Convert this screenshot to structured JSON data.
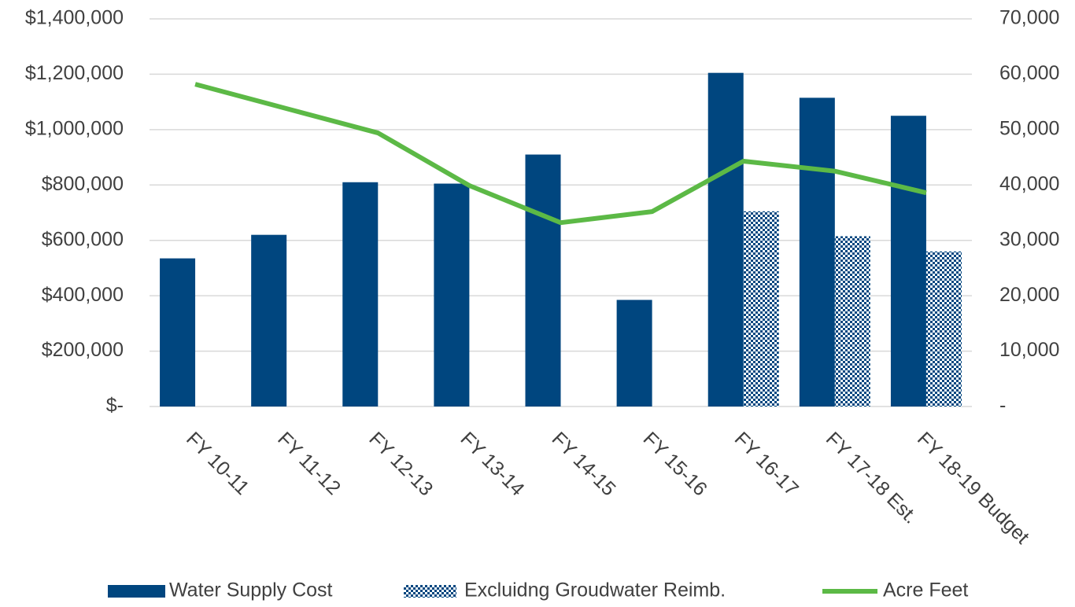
{
  "chart_data": {
    "type": "bar",
    "categories": [
      "FY 10-11",
      "FY 11-12",
      "FY 12-13",
      "FY 13-14",
      "FY 14-15",
      "FY 15-16",
      "FY 16-17",
      "FY 17-18 Est.",
      "FY 18-19 Budget"
    ],
    "series": [
      {
        "name": "Water Supply Cost",
        "type": "bar",
        "color": "#00467f",
        "values": [
          535000,
          620000,
          810000,
          805000,
          910000,
          385000,
          1205000,
          1115000,
          1050000
        ]
      },
      {
        "name": "Excluidng Groudwater Reimb.",
        "type": "bar",
        "pattern": "checker",
        "color": "#00467f",
        "values": [
          null,
          null,
          null,
          null,
          null,
          null,
          705000,
          615000,
          560000
        ]
      },
      {
        "name": "Acre Feet",
        "type": "line",
        "axis": "y2",
        "color": "#5cb946",
        "values": [
          58200,
          53800,
          49400,
          39900,
          33200,
          35200,
          44300,
          42500,
          38600
        ]
      }
    ],
    "ylim": [
      0,
      1400000
    ],
    "yticks": [
      {
        "value": 0,
        "label": "$-"
      },
      {
        "value": 200000,
        "label": "$200,000"
      },
      {
        "value": 400000,
        "label": "$400,000"
      },
      {
        "value": 600000,
        "label": "$600,000"
      },
      {
        "value": 800000,
        "label": "$800,000"
      },
      {
        "value": 1000000,
        "label": "$1,000,000"
      },
      {
        "value": 1200000,
        "label": "$1,200,000"
      },
      {
        "value": 1400000,
        "label": "$1,400,000"
      }
    ],
    "y2lim": [
      0,
      70000
    ],
    "y2ticks": [
      {
        "value": 0,
        "label": "-"
      },
      {
        "value": 10000,
        "label": "10,000"
      },
      {
        "value": 20000,
        "label": "20,000"
      },
      {
        "value": 30000,
        "label": "30,000"
      },
      {
        "value": 40000,
        "label": "40,000"
      },
      {
        "value": 50000,
        "label": "50,000"
      },
      {
        "value": 60000,
        "label": "60,000"
      },
      {
        "value": 70000,
        "label": "70,000"
      }
    ],
    "grid": true,
    "legend": "bottom"
  }
}
